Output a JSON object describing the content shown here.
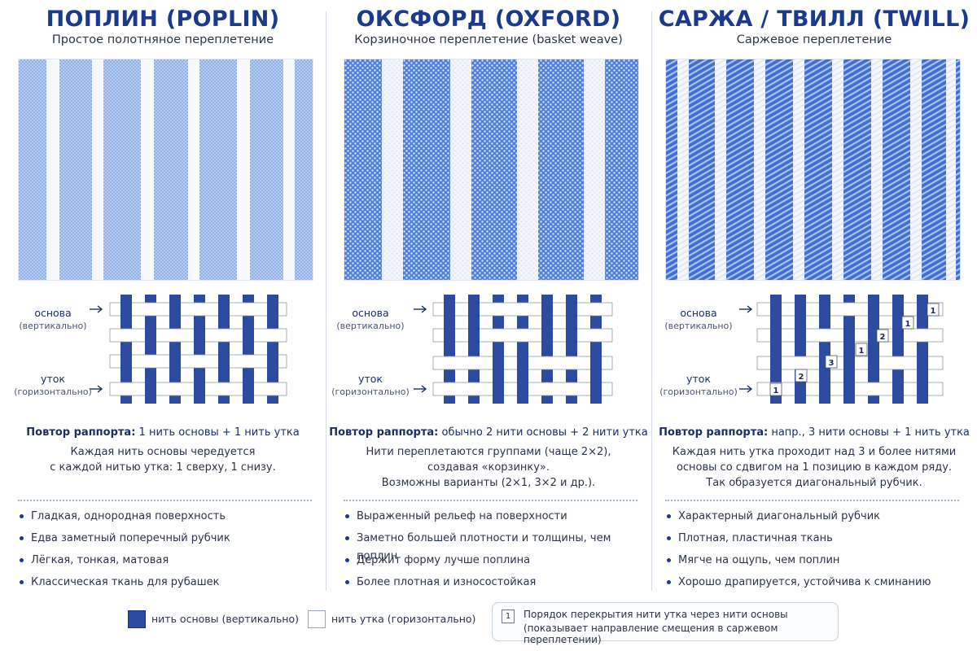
{
  "columns": [
    {
      "title": "ПОПЛИН (POPLIN)",
      "subtitle": "Простое полотняное переплетение",
      "swatch": {
        "kind": "plain",
        "stripe_color": "#8fb0e6",
        "base_color": "#ffffff"
      },
      "warp_label": "основа",
      "warp_sub": "(вертикально)",
      "weft_label": "уток",
      "weft_sub": "(горизонтально)",
      "repeat_label": "Повтор раппорта:",
      "repeat_text": "1 нить основы + 1 нить утка",
      "desc": [
        "Каждая нить основы чередуется",
        "с каждой нитью утка: 1 сверху, 1 снизу."
      ],
      "bullets": [
        "Гладкая, однородная поверхность",
        "Едва заметный поперечный рубчик",
        "Лёгкая, тонкая, матовая",
        "Классическая ткань для рубашек"
      ]
    },
    {
      "title": "ОКСФОРД (OXFORD)",
      "subtitle": "Корзиночное переплетение (basket weave)",
      "swatch": {
        "kind": "oxford",
        "stripe_color": "#4f7fd6",
        "base_color": "#ffffff"
      },
      "warp_label": "основа",
      "warp_sub": "(вертикально)",
      "weft_label": "уток",
      "weft_sub": "(горизонтально)",
      "repeat_label": "Повтор раппорта:",
      "repeat_text": "обычно 2 нити основы + 2 нити утка",
      "desc": [
        "Нити переплетаются группами (чаще 2×2),",
        "создавая «корзинку».",
        "Возможны варианты (2×1, 3×2 и др.)."
      ],
      "bullets": [
        "Выраженный рельеф на поверхности",
        "Заметно большей плотности и толщины, чем поплин",
        "Держит форму лучше поплина",
        "Более плотная и износостойкая"
      ]
    },
    {
      "title": "САРЖА / ТВИЛЛ (TWILL)",
      "subtitle": "Саржевое переплетение",
      "swatch": {
        "kind": "twill",
        "stripe_color": "#3f6fd0",
        "base_color": "#ffffff"
      },
      "warp_label": "основа",
      "warp_sub": "(вертикально)",
      "weft_label": "уток",
      "weft_sub": "(горизонтально)",
      "repeat_label": "Повтор раппорта:",
      "repeat_text": "напр., 3 нити основы + 1 нить утка",
      "desc": [
        "Каждая нить утка проходит над 3 и более нитями",
        "основы со сдвигом на 1 позицию в каждом ряду.",
        "Так образуется диагональный рубчик."
      ],
      "bullets": [
        "Характерный диагональный рубчик",
        "Плотная, пластичная ткань",
        "Мягче на ощупь, чем поплин",
        "Хорошо драпируется, устойчива к сминанию"
      ],
      "order_marks": [
        "1",
        "2",
        "3",
        "1",
        "2",
        "1",
        "1"
      ]
    }
  ],
  "legend": {
    "warp_text": "нить основы (вертикально)",
    "weft_text": "нить утка (горизонтально)",
    "order_num": "1",
    "order_line1": "Порядок перекрытия нити утка через нити основы",
    "order_line2": "(показывает направление смещения в саржевом переплетении)"
  },
  "colors": {
    "warp": "#2b4aa0",
    "weft": "#ffffff",
    "title": "#1b3a8c"
  }
}
